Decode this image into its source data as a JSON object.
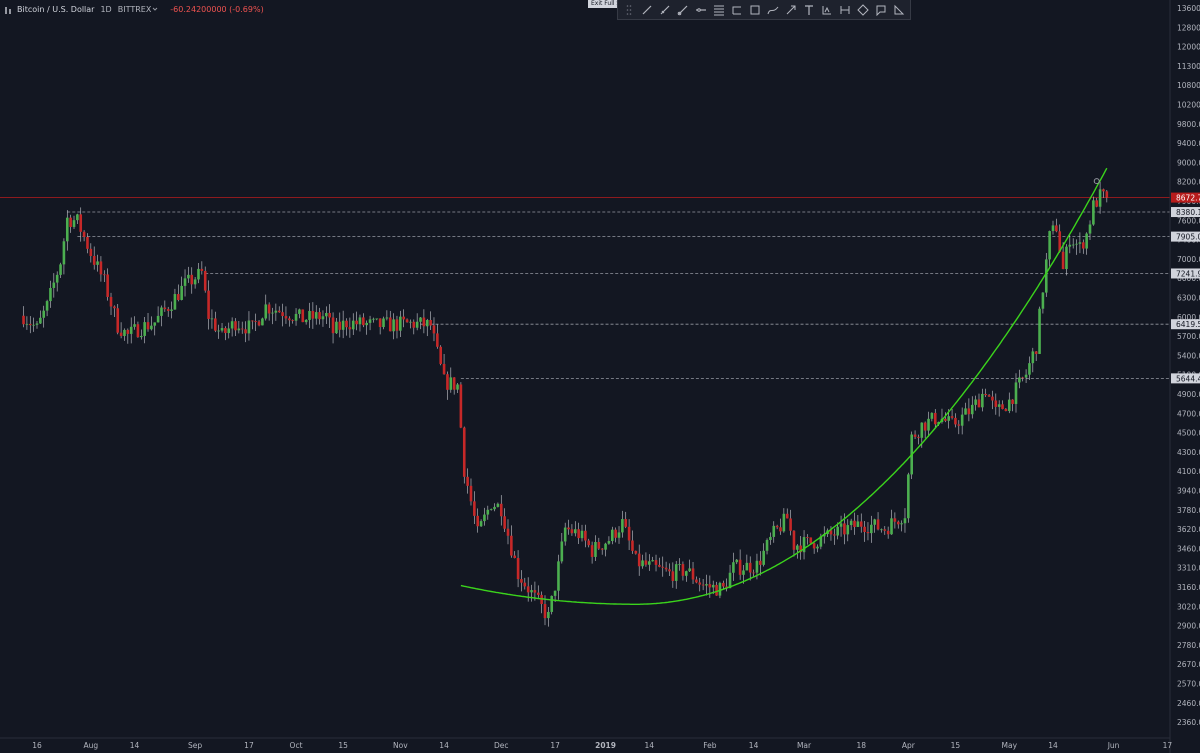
{
  "header": {
    "symbol": "Bitcoin / U.S. Dollar",
    "interval": "1D",
    "exchange": "BITTREX",
    "change": "-60.24200000 (-0.69%)",
    "chevron_icon": "chevron-down-icon"
  },
  "toolbar": {
    "exit_tip": "Exit Full S",
    "tools": [
      "trend-line-icon",
      "brush-icon",
      "ray-icon",
      "horizontal-line-icon",
      "fib-retracement-icon",
      "pitchfork-icon",
      "rectangle-icon",
      "path-icon",
      "arrow-icon",
      "text-icon",
      "long-position-icon",
      "measure-icon",
      "ellipse-icon",
      "callout-icon",
      "triangle-icon"
    ]
  },
  "colors": {
    "background": "#131722",
    "up": "#4caf50",
    "down": "#c62828",
    "curve": "#3bd41c",
    "level_line": "#9598a1",
    "price_line": "#b71c1c"
  },
  "chart_data": {
    "type": "candlestick",
    "symbol": "Bitcoin / U.S. Dollar",
    "interval": "1D",
    "y_scale": "log",
    "y_ticks": [
      "13600.0",
      "12800.0",
      "12000.0",
      "11300.0",
      "10800.0",
      "10200.0",
      "9800.0",
      "9400.0",
      "9000.0",
      "8200.0",
      "7900.0",
      "7600.0",
      "7400.0",
      "7000.0",
      "6600.0",
      "6300.0",
      "6000.0",
      "5700.0",
      "5400.0",
      "5100.0",
      "4900.0",
      "4700.0",
      "4500.0",
      "4300.0",
      "4100.0",
      "3940.0",
      "3780.0",
      "3620.0",
      "3460.0",
      "3310.0",
      "3160.0",
      "3020.0",
      "2900.0",
      "2780.0",
      "2670.0",
      "2570.0",
      "2460.0",
      "2360.0"
    ],
    "x_ticks": [
      {
        "label": "16",
        "date": "2018-07-16"
      },
      {
        "label": "Aug",
        "date": "2018-08-01"
      },
      {
        "label": "14",
        "date": "2018-08-14"
      },
      {
        "label": "Sep",
        "date": "2018-09-01"
      },
      {
        "label": "17",
        "date": "2018-09-17"
      },
      {
        "label": "Oct",
        "date": "2018-10-01"
      },
      {
        "label": "15",
        "date": "2018-10-15"
      },
      {
        "label": "Nov",
        "date": "2018-11-01"
      },
      {
        "label": "14",
        "date": "2018-11-14"
      },
      {
        "label": "Dec",
        "date": "2018-12-01"
      },
      {
        "label": "17",
        "date": "2018-12-17"
      },
      {
        "label": "2019",
        "date": "2019-01-01"
      },
      {
        "label": "14",
        "date": "2019-01-14"
      },
      {
        "label": "Feb",
        "date": "2019-02-01"
      },
      {
        "label": "14",
        "date": "2019-02-14"
      },
      {
        "label": "Mar",
        "date": "2019-03-01"
      },
      {
        "label": "18",
        "date": "2019-03-18"
      },
      {
        "label": "Apr",
        "date": "2019-04-01"
      },
      {
        "label": "15",
        "date": "2019-04-15"
      },
      {
        "label": "May",
        "date": "2019-05-01"
      },
      {
        "label": "14",
        "date": "2019-05-14"
      },
      {
        "label": "Jun",
        "date": "2019-06-01"
      },
      {
        "label": "17",
        "date": "2019-06-17"
      }
    ],
    "current_price": {
      "label": "8672.7",
      "value": 8672.7
    },
    "levels": [
      {
        "label": "8380.1",
        "value": 8380.1,
        "from": "2018-07-25"
      },
      {
        "label": "7905.0",
        "value": 7905.0,
        "from": "2018-07-28"
      },
      {
        "label": "7241.9",
        "value": 7241.9,
        "from": "2018-09-04"
      },
      {
        "label": "6419.5",
        "value": 6419.5,
        "from": "2018-11-07"
      },
      {
        "label": "5644.4",
        "value": 5644.4,
        "from": "2018-11-19"
      }
    ],
    "curve": {
      "start": "2018-11-19",
      "end": "2019-05-30",
      "bottom": "2019-01-10",
      "bottom_value": 3300,
      "start_value": 3450,
      "end_value": 9300
    },
    "price_path": [
      [
        "2018-07-12",
        6550
      ],
      [
        "2018-07-16",
        6350
      ],
      [
        "2018-07-19",
        6700
      ],
      [
        "2018-07-23",
        7450
      ],
      [
        "2018-07-25",
        8250
      ],
      [
        "2018-07-28",
        8200
      ],
      [
        "2018-08-01",
        7600
      ],
      [
        "2018-08-05",
        7100
      ],
      [
        "2018-08-09",
        6400
      ],
      [
        "2018-08-12",
        6250
      ],
      [
        "2018-08-15",
        6350
      ],
      [
        "2018-08-20",
        6450
      ],
      [
        "2018-08-24",
        6700
      ],
      [
        "2018-08-29",
        7050
      ],
      [
        "2018-09-03",
        7250
      ],
      [
        "2018-09-05",
        6550
      ],
      [
        "2018-09-09",
        6250
      ],
      [
        "2018-09-13",
        6450
      ],
      [
        "2018-09-18",
        6350
      ],
      [
        "2018-09-22",
        6700
      ],
      [
        "2018-09-28",
        6600
      ],
      [
        "2018-10-03",
        6500
      ],
      [
        "2018-10-10",
        6550
      ],
      [
        "2018-10-12",
        6300
      ],
      [
        "2018-10-16",
        6450
      ],
      [
        "2018-10-25",
        6400
      ],
      [
        "2018-11-05",
        6430
      ],
      [
        "2018-11-10",
        6400
      ],
      [
        "2018-11-14",
        5600
      ],
      [
        "2018-11-18",
        5550
      ],
      [
        "2018-11-20",
        4550
      ],
      [
        "2018-11-24",
        3900
      ],
      [
        "2018-11-28",
        4200
      ],
      [
        "2018-12-01",
        4150
      ],
      [
        "2018-12-06",
        3550
      ],
      [
        "2018-12-11",
        3350
      ],
      [
        "2018-12-15",
        3200
      ],
      [
        "2018-12-17",
        3450
      ],
      [
        "2018-12-20",
        3950
      ],
      [
        "2018-12-24",
        3900
      ],
      [
        "2018-12-28",
        3750
      ],
      [
        "2019-01-02",
        3850
      ],
      [
        "2019-01-06",
        4000
      ],
      [
        "2019-01-10",
        3650
      ],
      [
        "2019-01-15",
        3600
      ],
      [
        "2019-01-20",
        3550
      ],
      [
        "2019-01-25",
        3580
      ],
      [
        "2019-01-30",
        3450
      ],
      [
        "2019-02-05",
        3420
      ],
      [
        "2019-02-08",
        3600
      ],
      [
        "2019-02-15",
        3620
      ],
      [
        "2019-02-20",
        3900
      ],
      [
        "2019-02-24",
        4050
      ],
      [
        "2019-02-26",
        3800
      ],
      [
        "2019-03-03",
        3820
      ],
      [
        "2019-03-10",
        3900
      ],
      [
        "2019-03-18",
        4000
      ],
      [
        "2019-03-25",
        3950
      ],
      [
        "2019-03-31",
        4100
      ],
      [
        "2019-04-02",
        4900
      ],
      [
        "2019-04-05",
        5050
      ],
      [
        "2019-04-10",
        5150
      ],
      [
        "2019-04-14",
        5050
      ],
      [
        "2019-04-20",
        5250
      ],
      [
        "2019-04-24",
        5500
      ],
      [
        "2019-04-27",
        5200
      ],
      [
        "2019-05-01",
        5350
      ],
      [
        "2019-05-06",
        5700
      ],
      [
        "2019-05-09",
        6100
      ],
      [
        "2019-05-11",
        7000
      ],
      [
        "2019-05-13",
        7900
      ],
      [
        "2019-05-15",
        8100
      ],
      [
        "2019-05-17",
        7300
      ],
      [
        "2019-05-19",
        7900
      ],
      [
        "2019-05-22",
        7700
      ],
      [
        "2019-05-24",
        7950
      ],
      [
        "2019-05-26",
        8500
      ],
      [
        "2019-05-28",
        8700
      ],
      [
        "2019-05-30",
        8672.7
      ]
    ]
  }
}
